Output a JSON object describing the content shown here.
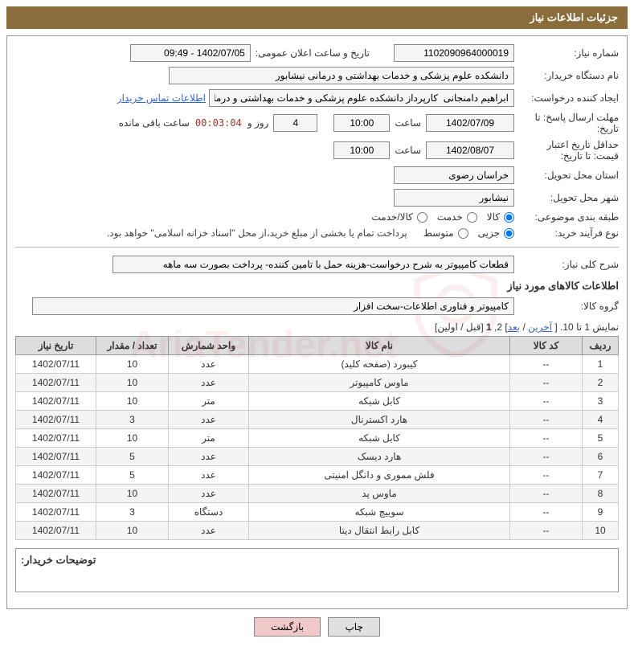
{
  "title_bar": "جزئیات اطلاعات نیاز",
  "labels": {
    "need_no": "شماره نیاز:",
    "announce_datetime": "تاریخ و ساعت اعلان عمومی:",
    "buyer_org": "نام دستگاه خریدار:",
    "requester": "ایجاد کننده درخواست:",
    "contact_link": "اطلاعات تماس خریدار",
    "reply_deadline": "مهلت ارسال پاسخ: تا تاریخ:",
    "hour": "ساعت",
    "days_and": "روز و",
    "remaining": "ساعت باقی مانده",
    "price_valid_min": "حداقل تاریخ اعتبار قیمت: تا تاریخ:",
    "delivery_province": "استان محل تحویل:",
    "delivery_city": "شهر محل تحویل:",
    "subject_class": "طبقه بندی موضوعی:",
    "purchase_type": "نوع فرآیند خرید:",
    "purchase_note": "پرداخت تمام یا بخشی از مبلغ خرید،از محل \"اسناد خزانه اسلامی\" خواهد بود.",
    "overall_desc": "شرح کلی نیاز:",
    "goods_info_title": "اطلاعات کالاهای مورد نیاز",
    "goods_group": "گروه کالا:",
    "paging_prefix": "نمایش 1 تا 10. [ ",
    "paging_last": "آخرین",
    "paging_next": "بعد",
    "paging_sep": " / ",
    "paging_mid": "] 2, ",
    "paging_one": "1",
    "paging_suffix": " [قبل / اولین]",
    "buyer_notes": "توضیحات خریدار:",
    "btn_print": "چاپ",
    "btn_back": "بازگشت"
  },
  "values": {
    "need_no": "1102090964000019",
    "announce_datetime": "1402/07/05 - 09:49",
    "buyer_org": "دانشکده علوم پزشکی و خدمات بهداشتی و درمانی نیشابور",
    "requester": "ابراهیم دامنجانی  کارپرداز دانشکده علوم پزشکی و خدمات بهداشتی و درمانی ن",
    "reply_date": "1402/07/09",
    "reply_time": "10:00",
    "remaining_days": "4",
    "remaining_timer": "00:03:04",
    "priceval_date": "1402/08/07",
    "priceval_time": "10:00",
    "province": "خراسان رضوی",
    "city": "نیشابور",
    "overall_desc": "قطعات کامپیوتر به شرح درخواست-هزینه حمل با تامین کننده- پرداخت بصورت سه ماهه",
    "goods_group": "کامپیوتر و فناوری اطلاعات-سخت افزار"
  },
  "radio_subject": {
    "opt_goods": "کالا",
    "opt_service": "خدمت",
    "opt_both": "کالا/خدمت",
    "selected": "کالا"
  },
  "radio_purchase": {
    "opt_minor": "جزیی",
    "opt_medium": "متوسط",
    "selected": "جزیی"
  },
  "table": {
    "headers": {
      "row": "ردیف",
      "code": "کد کالا",
      "name": "نام کالا",
      "unit": "واحد شمارش",
      "qty": "تعداد / مقدار",
      "need_date": "تاریخ نیاز"
    },
    "rows": [
      {
        "n": "1",
        "code": "--",
        "name": "کیبورد (صفحه کلید)",
        "unit": "عدد",
        "qty": "10",
        "date": "1402/07/11"
      },
      {
        "n": "2",
        "code": "--",
        "name": "ماوس کامپیوتر",
        "unit": "عدد",
        "qty": "10",
        "date": "1402/07/11"
      },
      {
        "n": "3",
        "code": "--",
        "name": "کابل شبکه",
        "unit": "متر",
        "qty": "10",
        "date": "1402/07/11"
      },
      {
        "n": "4",
        "code": "--",
        "name": "هارد اکسترنال",
        "unit": "عدد",
        "qty": "3",
        "date": "1402/07/11"
      },
      {
        "n": "5",
        "code": "--",
        "name": "کابل شبکه",
        "unit": "متر",
        "qty": "10",
        "date": "1402/07/11"
      },
      {
        "n": "6",
        "code": "--",
        "name": "هارد دیسک",
        "unit": "عدد",
        "qty": "5",
        "date": "1402/07/11"
      },
      {
        "n": "7",
        "code": "--",
        "name": "فلش مموری و دانگل امنیتی",
        "unit": "عدد",
        "qty": "5",
        "date": "1402/07/11"
      },
      {
        "n": "8",
        "code": "--",
        "name": "ماوس پد",
        "unit": "عدد",
        "qty": "10",
        "date": "1402/07/11"
      },
      {
        "n": "9",
        "code": "--",
        "name": "سوییچ شبکه",
        "unit": "دستگاه",
        "qty": "3",
        "date": "1402/07/11"
      },
      {
        "n": "10",
        "code": "--",
        "name": "کابل رابط انتقال دیتا",
        "unit": "عدد",
        "qty": "10",
        "date": "1402/07/11"
      }
    ]
  }
}
